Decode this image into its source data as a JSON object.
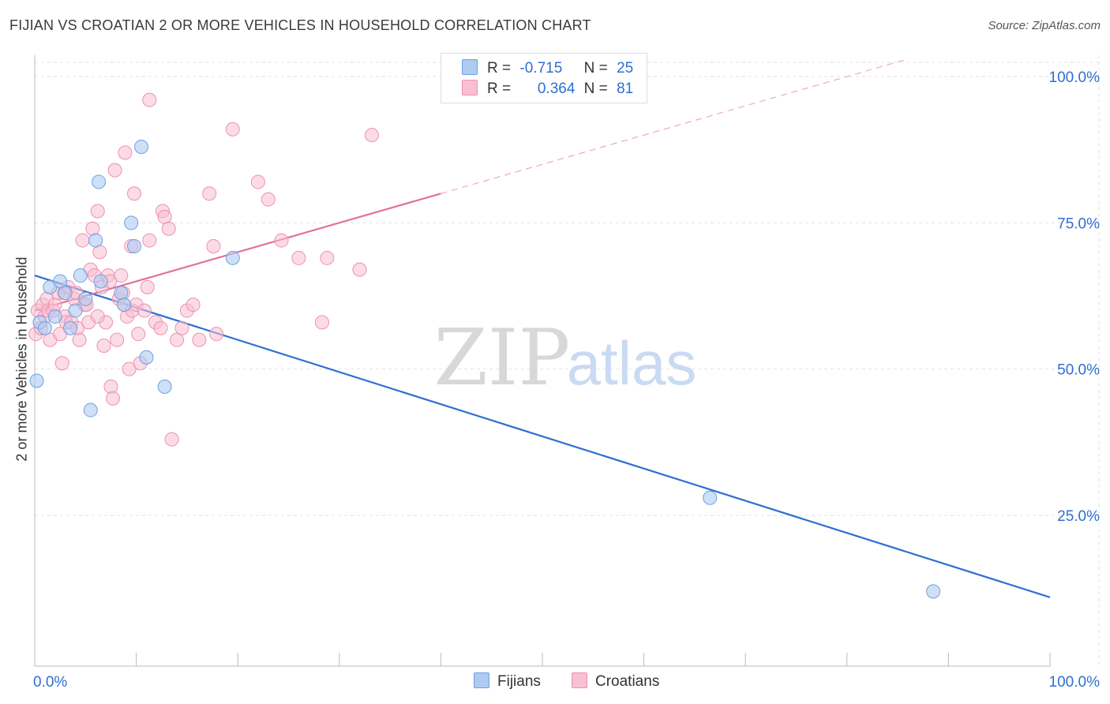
{
  "title": "FIJIAN VS CROATIAN 2 OR MORE VEHICLES IN HOUSEHOLD CORRELATION CHART",
  "source": "Source: ZipAtlas.com",
  "watermark": {
    "zip": "ZIP",
    "atlas": "atlas"
  },
  "legend": {
    "r_label": "R =",
    "n_label": "N =",
    "fijians": {
      "r": "-0.715",
      "n": "25"
    },
    "croatians": {
      "r": "0.364",
      "n": "81"
    }
  },
  "colors": {
    "fijians_fill": "#aecbf2",
    "fijians_stroke": "#6f9fe0",
    "fijians_line": "#2b6fd4",
    "croatians_fill": "#f8c0d2",
    "croatians_stroke": "#ee90b0",
    "croatians_line": "#e0709a"
  },
  "chart_data": {
    "type": "scatter",
    "title": "FIJIAN VS CROATIAN 2 OR MORE VEHICLES IN HOUSEHOLD CORRELATION CHART",
    "xlabel": "",
    "ylabel": "2 or more Vehicles in Household",
    "xlim": [
      0,
      100
    ],
    "ylim": [
      0,
      103
    ],
    "x_tick_labels": [
      "0.0%",
      "100.0%"
    ],
    "y_ticks": [
      25,
      50,
      75,
      100
    ],
    "y_tick_labels": [
      "25.0%",
      "50.0%",
      "75.0%",
      "100.0%"
    ],
    "grid": true,
    "legend_position": "bottom",
    "series": [
      {
        "name": "Fijians",
        "r": -0.715,
        "n": 25,
        "points": [
          [
            0.2,
            48
          ],
          [
            0.5,
            58
          ],
          [
            1.0,
            57
          ],
          [
            1.5,
            64
          ],
          [
            2.0,
            59
          ],
          [
            2.5,
            65
          ],
          [
            3.0,
            63
          ],
          [
            3.5,
            57
          ],
          [
            4.0,
            60
          ],
          [
            4.5,
            66
          ],
          [
            5.0,
            62
          ],
          [
            5.5,
            43
          ],
          [
            6.0,
            72
          ],
          [
            6.3,
            82
          ],
          [
            6.5,
            65
          ],
          [
            8.5,
            63
          ],
          [
            8.8,
            61
          ],
          [
            9.5,
            75
          ],
          [
            9.8,
            71
          ],
          [
            10.5,
            88
          ],
          [
            11.0,
            52
          ],
          [
            12.8,
            47
          ],
          [
            19.5,
            69
          ],
          [
            66.5,
            28
          ],
          [
            88.5,
            12
          ]
        ],
        "trend": {
          "x": [
            0,
            100
          ],
          "y": [
            66,
            11
          ]
        }
      },
      {
        "name": "Croatians",
        "r": 0.364,
        "n": 81,
        "points": [
          [
            0.1,
            56
          ],
          [
            0.3,
            60
          ],
          [
            0.6,
            57
          ],
          [
            0.8,
            61
          ],
          [
            1.0,
            59
          ],
          [
            1.2,
            62
          ],
          [
            1.3,
            60
          ],
          [
            1.5,
            55
          ],
          [
            1.8,
            60
          ],
          [
            2.0,
            61
          ],
          [
            2.3,
            63
          ],
          [
            2.5,
            56
          ],
          [
            2.7,
            51
          ],
          [
            2.9,
            63
          ],
          [
            3.0,
            59
          ],
          [
            3.1,
            58
          ],
          [
            3.3,
            64
          ],
          [
            3.6,
            58
          ],
          [
            3.9,
            62
          ],
          [
            4.1,
            63
          ],
          [
            4.2,
            57
          ],
          [
            4.4,
            55
          ],
          [
            4.7,
            72
          ],
          [
            4.9,
            61
          ],
          [
            5.1,
            61
          ],
          [
            5.3,
            58
          ],
          [
            5.5,
            67
          ],
          [
            5.7,
            74
          ],
          [
            5.9,
            66
          ],
          [
            6.2,
            77
          ],
          [
            6.4,
            70
          ],
          [
            6.6,
            64
          ],
          [
            6.8,
            54
          ],
          [
            7.0,
            58
          ],
          [
            7.2,
            66
          ],
          [
            7.4,
            65
          ],
          [
            7.5,
            47
          ],
          [
            7.7,
            45
          ],
          [
            7.9,
            84
          ],
          [
            8.1,
            55
          ],
          [
            8.3,
            62
          ],
          [
            8.5,
            66
          ],
          [
            8.7,
            63
          ],
          [
            8.8,
            61
          ],
          [
            8.9,
            87
          ],
          [
            9.1,
            59
          ],
          [
            9.3,
            50
          ],
          [
            9.5,
            71
          ],
          [
            9.6,
            60
          ],
          [
            9.8,
            80
          ],
          [
            10.0,
            61
          ],
          [
            10.2,
            56
          ],
          [
            10.4,
            51
          ],
          [
            10.8,
            60
          ],
          [
            11.1,
            64
          ],
          [
            11.3,
            72
          ],
          [
            11.9,
            58
          ],
          [
            12.4,
            57
          ],
          [
            12.6,
            77
          ],
          [
            12.8,
            76
          ],
          [
            13.2,
            74
          ],
          [
            13.5,
            38
          ],
          [
            14.0,
            55
          ],
          [
            14.5,
            57
          ],
          [
            15.0,
            60
          ],
          [
            15.6,
            61
          ],
          [
            16.2,
            55
          ],
          [
            17.2,
            80
          ],
          [
            17.6,
            71
          ],
          [
            17.9,
            56
          ],
          [
            19.5,
            91
          ],
          [
            22.0,
            82
          ],
          [
            23.0,
            79
          ],
          [
            24.3,
            72
          ],
          [
            26.0,
            69
          ],
          [
            28.3,
            58
          ],
          [
            28.8,
            69
          ],
          [
            32.0,
            67
          ],
          [
            33.2,
            90
          ],
          [
            11.3,
            96
          ],
          [
            6.2,
            59
          ]
        ],
        "trend": {
          "x": [
            0,
            40
          ],
          "y": [
            60,
            80
          ],
          "dashed_extension": {
            "x": [
              40,
              100
            ],
            "y": [
              80,
              110
            ]
          }
        }
      }
    ]
  }
}
